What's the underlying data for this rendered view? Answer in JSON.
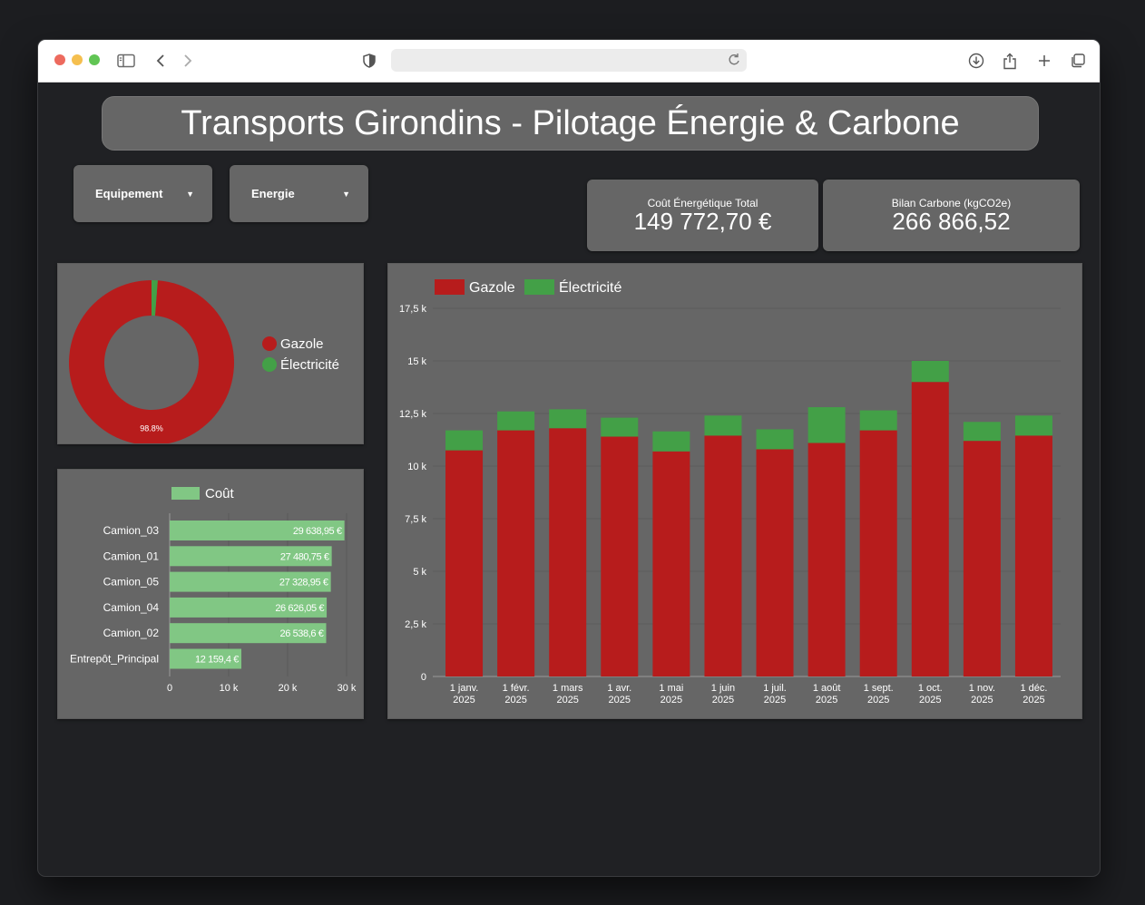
{
  "browser": {
    "address_value": ""
  },
  "dashboard": {
    "title": "Transports Girondins - Pilotage Énergie & Carbone"
  },
  "filters": [
    {
      "label": "Equipement"
    },
    {
      "label": "Energie"
    }
  ],
  "kpis": {
    "cost": {
      "label": "Coût Énergétique Total",
      "value": "149 772,70 €"
    },
    "carbon": {
      "label": "Bilan Carbone (kgCO2e)",
      "value": "266 866,52"
    }
  },
  "colors": {
    "gazole": "#b71c1c",
    "electricite": "#43a047",
    "cout": "#81c784",
    "panel": "#666666"
  },
  "icons": [
    "sidebar-icon",
    "back-icon",
    "forward-icon",
    "shield-icon",
    "reload-icon",
    "download-icon",
    "share-icon",
    "plus-icon",
    "tabs-icon"
  ],
  "chart_data": [
    {
      "type": "pie",
      "donut": true,
      "categories": [
        "Gazole",
        "Électricité"
      ],
      "values": [
        98.8,
        1.2
      ],
      "labels_shown": [
        "98.8%",
        ""
      ],
      "legend": "right"
    },
    {
      "type": "bar",
      "orientation": "horizontal",
      "categories": [
        "Camion_03",
        "Camion_01",
        "Camion_05",
        "Camion_04",
        "Camion_02",
        "Entrepôt_Principal"
      ],
      "series": [
        {
          "name": "Coût",
          "values": [
            29638.95,
            27480.75,
            27328.95,
            26626.05,
            26538.6,
            12159.4
          ]
        }
      ],
      "data_labels": [
        "29 638,95 €",
        "27 480,75 €",
        "27 328,95 €",
        "26 626,05 €",
        "26 538,6 €",
        "12 159,4 €"
      ],
      "xticks": [
        "0",
        "10 k",
        "20 k",
        "30 k"
      ],
      "xlim": [
        0,
        30000
      ],
      "legend": "top"
    },
    {
      "type": "bar",
      "stacked": true,
      "categories": [
        "1 janv. 2025",
        "1 févr. 2025",
        "1 mars 2025",
        "1 avr. 2025",
        "1 mai 2025",
        "1 juin 2025",
        "1 juil. 2025",
        "1 août 2025",
        "1 sept. 2025",
        "1 oct. 2025",
        "1 nov. 2025",
        "1 déc. 2025"
      ],
      "series": [
        {
          "name": "Gazole",
          "values": [
            10750,
            11700,
            11800,
            11400,
            10700,
            11450,
            10800,
            11100,
            11700,
            14000,
            11200,
            11450
          ]
        },
        {
          "name": "Électricité",
          "values": [
            950,
            900,
            900,
            900,
            950,
            950,
            950,
            1700,
            950,
            1000,
            900,
            950
          ]
        }
      ],
      "yticks": [
        "0",
        "2,5 k",
        "5 k",
        "7,5 k",
        "10 k",
        "12,5 k",
        "15 k",
        "17,5 k"
      ],
      "ylim": [
        0,
        17500
      ],
      "grid": true,
      "legend": "top-left"
    }
  ]
}
